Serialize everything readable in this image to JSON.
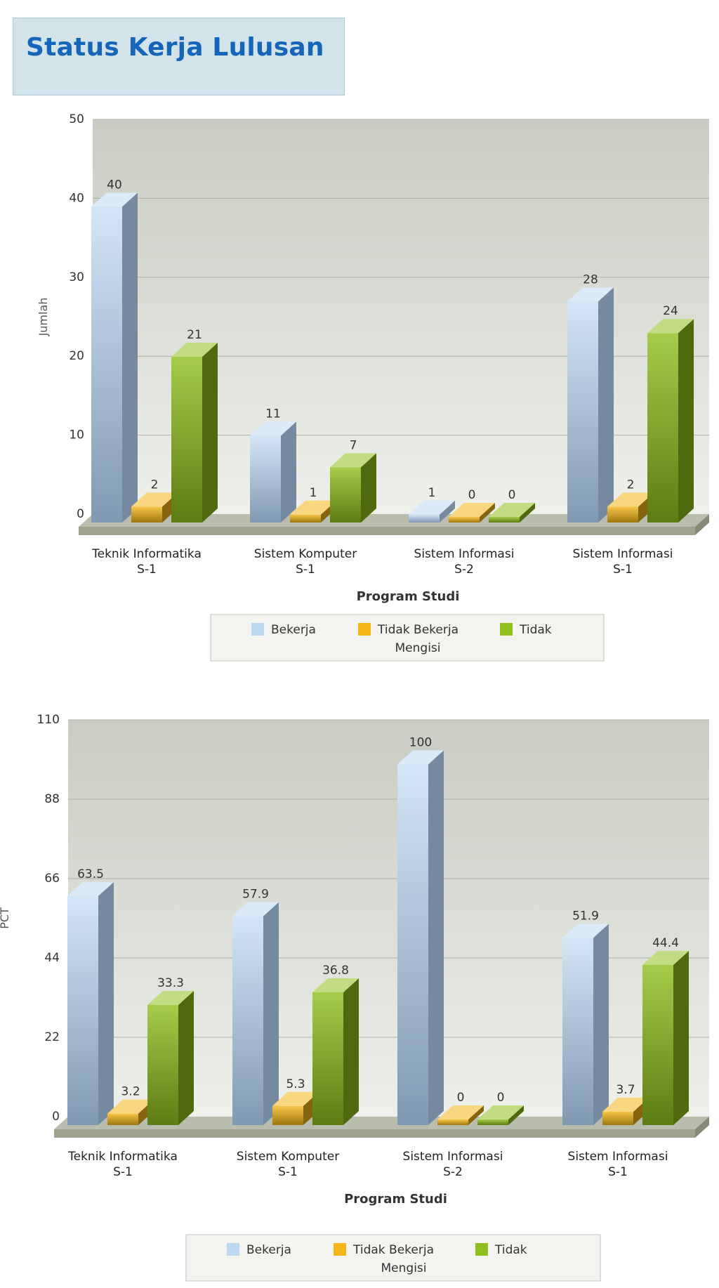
{
  "header": {
    "title": "Status Kerja Lulusan"
  },
  "colors": {
    "bekerja": "#bcd8f2",
    "tidak_bekerja": "#f4b619",
    "tidak_mengisi": "#8fbf1c"
  },
  "chart_data": [
    {
      "type": "bar",
      "categories": [
        [
          "Teknik Informatika",
          "S-1"
        ],
        [
          "Sistem Komputer",
          "S-1"
        ],
        [
          "Sistem Informasi",
          "S-2"
        ],
        [
          "Sistem Informasi",
          "S-1"
        ]
      ],
      "series": [
        {
          "name": "Bekerja",
          "values": [
            40,
            11,
            1,
            28
          ]
        },
        {
          "name": "Tidak Bekerja",
          "values": [
            2,
            1,
            0,
            2
          ]
        },
        {
          "name": "Tidak Mengisi",
          "values": [
            21,
            7,
            0,
            24
          ]
        }
      ],
      "y_ticks": [
        0,
        10,
        20,
        30,
        40,
        50
      ],
      "ylim": [
        0,
        50
      ],
      "xlabel": "Program Studi",
      "ylabel": "Jumlah",
      "legend": {
        "placement": "bottom",
        "items": [
          "Bekerja",
          "Tidak Bekerja",
          "Tidak",
          "Mengisi"
        ]
      },
      "grid": true
    },
    {
      "type": "bar",
      "categories": [
        [
          "Teknik Informatika",
          "S-1"
        ],
        [
          "Sistem Komputer",
          "S-1"
        ],
        [
          "Sistem Informasi",
          "S-2"
        ],
        [
          "Sistem Informasi",
          "S-1"
        ]
      ],
      "series": [
        {
          "name": "Bekerja",
          "values": [
            63.5,
            57.9,
            100,
            51.9
          ]
        },
        {
          "name": "Tidak Bekerja",
          "values": [
            3.2,
            5.3,
            0,
            3.7
          ]
        },
        {
          "name": "Tidak Mengisi",
          "values": [
            33.3,
            36.8,
            0,
            44.4
          ]
        }
      ],
      "y_ticks": [
        0,
        22,
        44,
        66,
        88,
        110
      ],
      "ylim": [
        0,
        110
      ],
      "xlabel": "Program Studi",
      "ylabel": "PCT",
      "legend": {
        "placement": "bottom",
        "items": [
          "Bekerja",
          "Tidak Bekerja",
          "Tidak",
          "Mengisi"
        ]
      },
      "grid": true
    }
  ]
}
